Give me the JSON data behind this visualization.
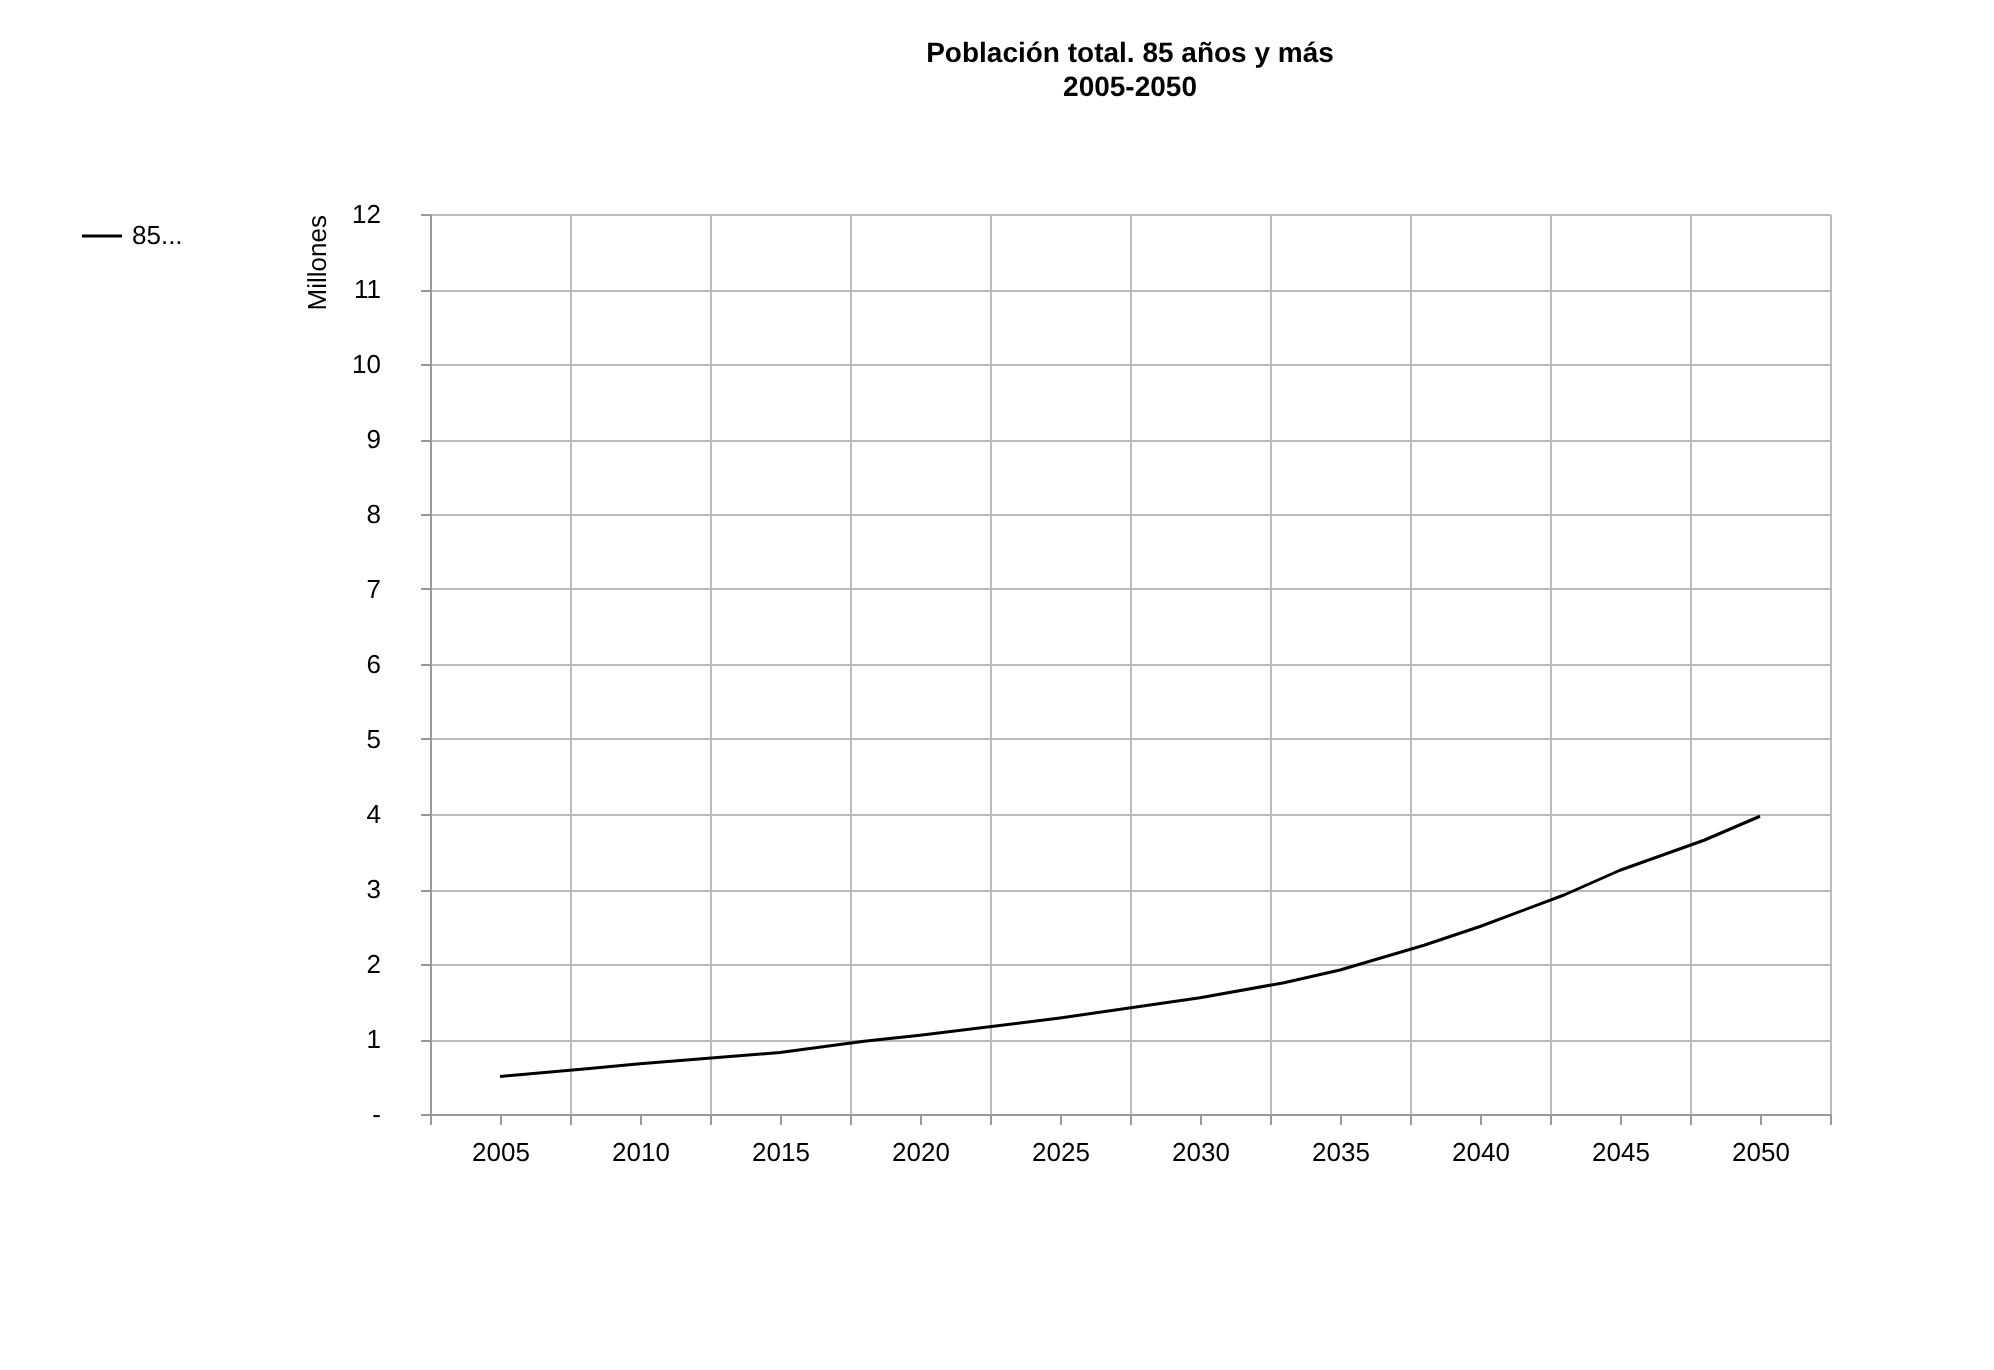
{
  "chart_data": {
    "type": "line",
    "title": "Población total. 85 años y más",
    "subtitle": "2005-2050",
    "ylabel": "Millones",
    "x": [
      2005,
      2008,
      2010,
      2015,
      2018,
      2020,
      2025,
      2030,
      2033,
      2035,
      2038,
      2040,
      2043,
      2045,
      2048,
      2050
    ],
    "series": [
      {
        "name": "85...",
        "color": "#000000",
        "values": [
          0.5,
          0.6,
          0.67,
          0.82,
          0.97,
          1.05,
          1.28,
          1.55,
          1.75,
          1.92,
          2.25,
          2.5,
          2.92,
          3.25,
          3.65,
          3.97
        ]
      }
    ],
    "xlim": [
      2002.5,
      2052.5
    ],
    "xticks": [
      {
        "value": 2002.5,
        "label": null
      },
      2005,
      {
        "value": 2007.5,
        "label": null
      },
      2010,
      {
        "value": 2012.5,
        "label": null
      },
      2015,
      {
        "value": 2017.5,
        "label": null
      },
      2020,
      {
        "value": 2022.5,
        "label": null
      },
      2025,
      {
        "value": 2027.5,
        "label": null
      },
      2030,
      {
        "value": 2032.5,
        "label": null
      },
      2035,
      {
        "value": 2037.5,
        "label": null
      },
      2040,
      {
        "value": 2042.5,
        "label": null
      },
      2045,
      {
        "value": 2047.5,
        "label": null
      },
      2050,
      {
        "value": 2052.5,
        "label": null
      }
    ],
    "ylim": [
      0,
      12
    ],
    "yticks": [
      {
        "value": 0,
        "label": "-"
      },
      1,
      2,
      3,
      4,
      5,
      6,
      7,
      8,
      9,
      10,
      11,
      12
    ],
    "grid": true,
    "legend": "left",
    "marker": "none",
    "line_style": "solid"
  }
}
